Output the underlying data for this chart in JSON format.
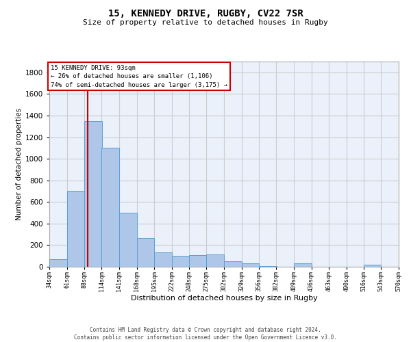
{
  "title1": "15, KENNEDY DRIVE, RUGBY, CV22 7SR",
  "title2": "Size of property relative to detached houses in Rugby",
  "xlabel": "Distribution of detached houses by size in Rugby",
  "ylabel": "Number of detached properties",
  "annotation_line1": "15 KENNEDY DRIVE: 93sqm",
  "annotation_line2": "← 26% of detached houses are smaller (1,106)",
  "annotation_line3": "74% of semi-detached houses are larger (3,175) →",
  "property_size_sqm": 93,
  "bin_edges": [
    34,
    61,
    88,
    114,
    141,
    168,
    195,
    222,
    248,
    275,
    302,
    329,
    356,
    382,
    409,
    436,
    463,
    490,
    516,
    543,
    570
  ],
  "bar_heights": [
    70,
    700,
    1350,
    1100,
    500,
    265,
    130,
    100,
    110,
    115,
    50,
    30,
    5,
    0,
    30,
    0,
    0,
    0,
    20,
    0,
    0
  ],
  "bar_color": "#aec6e8",
  "bar_edge_color": "#5a9fd4",
  "vline_color": "#cc0000",
  "box_edge_color": "#cc0000",
  "ylim_max": 1900,
  "yticks": [
    0,
    200,
    400,
    600,
    800,
    1000,
    1200,
    1400,
    1600,
    1800
  ],
  "grid_color": "#cccccc",
  "plot_bg_color": "#eaf1fb",
  "footer_line1": "Contains HM Land Registry data © Crown copyright and database right 2024.",
  "footer_line2": "Contains public sector information licensed under the Open Government Licence v3.0."
}
